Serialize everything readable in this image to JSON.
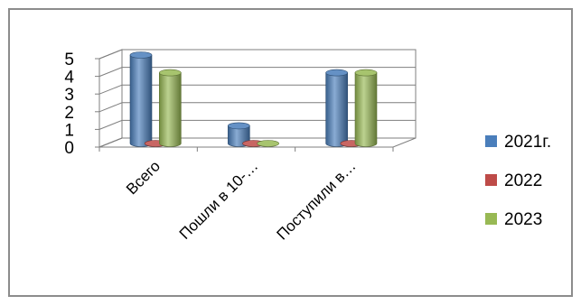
{
  "chart_data": {
    "type": "bar",
    "style": "3d-column",
    "categories": [
      "Всего",
      "Пошли в 10-…",
      "Поступили в…"
    ],
    "series": [
      {
        "name": "2021г.",
        "values": [
          5,
          1,
          4
        ],
        "color": "#4A7EBB"
      },
      {
        "name": "2022",
        "values": [
          0,
          0,
          0
        ],
        "color": "#BE4B48"
      },
      {
        "name": "2023",
        "values": [
          4,
          0,
          4
        ],
        "color": "#98B954"
      }
    ],
    "ylim": [
      0,
      5
    ],
    "yticks": [
      0,
      1,
      2,
      3,
      4,
      5
    ],
    "grid": true,
    "legend": "right"
  }
}
